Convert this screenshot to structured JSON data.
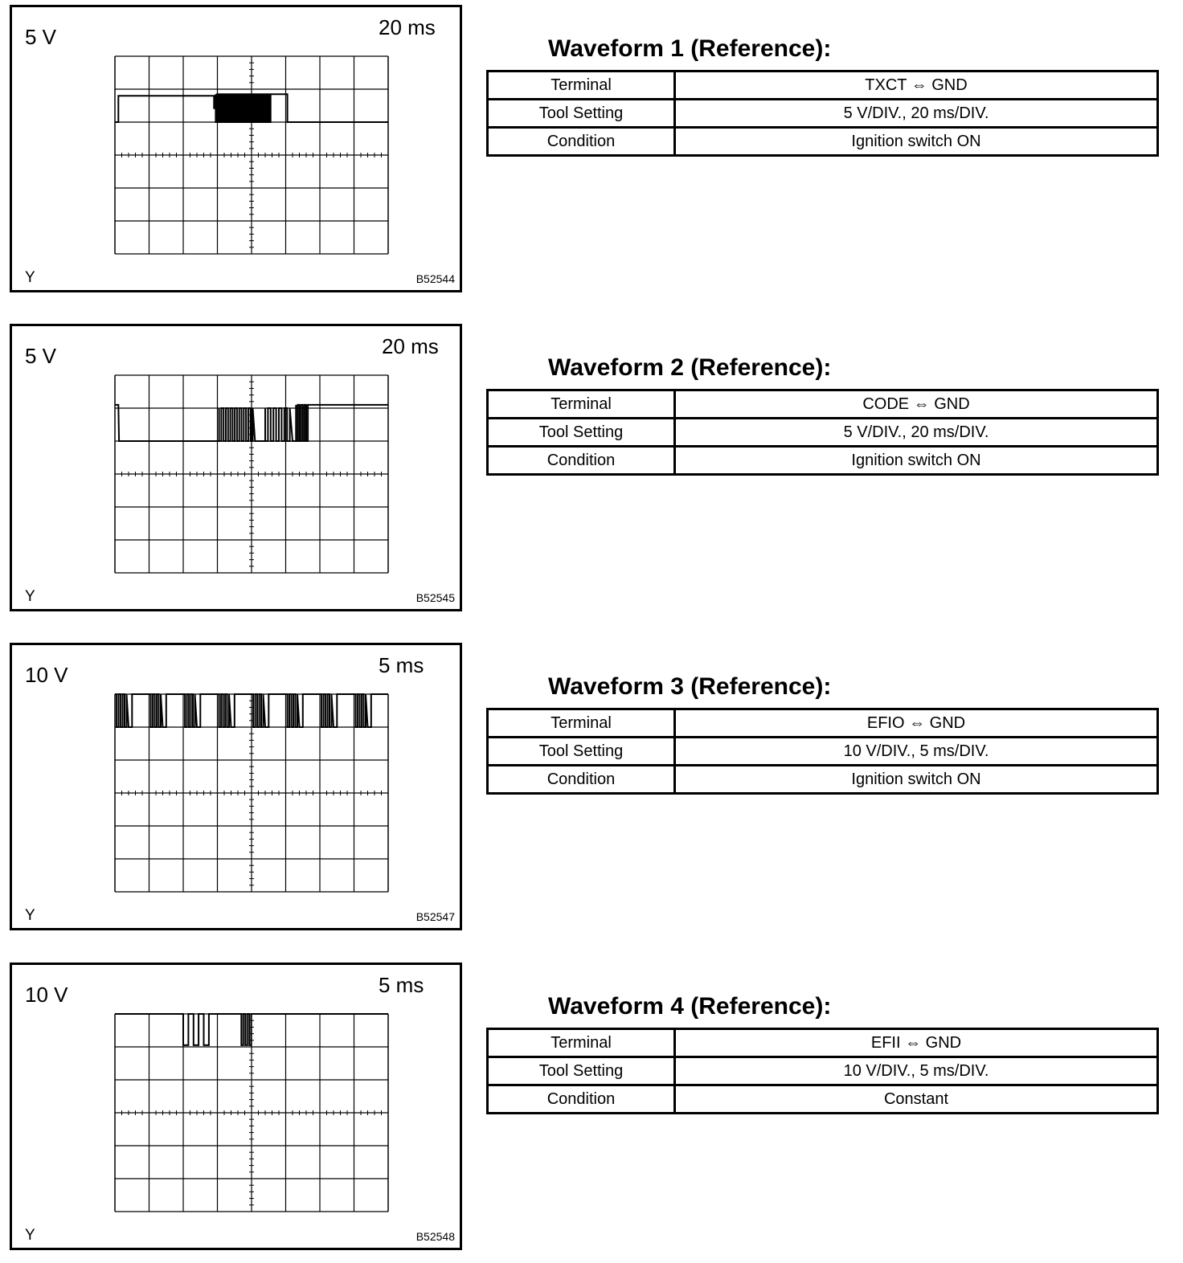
{
  "waveforms": [
    {
      "title": "Waveform 1 (Reference):",
      "volt_div": "5 V",
      "time_div": "20 ms",
      "y_label": "Y",
      "figure_code": "B52544",
      "rows": [
        {
          "key": "Terminal",
          "value": "TXCT ⇔ GND"
        },
        {
          "key": "Tool Setting",
          "value": "5 V/DIV., 20 ms/DIV."
        },
        {
          "key": "Condition",
          "value": "Ignition switch ON"
        }
      ]
    },
    {
      "title": "Waveform 2 (Reference):",
      "volt_div": "5 V",
      "time_div": "20 ms",
      "y_label": "Y",
      "figure_code": "B52545",
      "rows": [
        {
          "key": "Terminal",
          "value": "CODE ⇔ GND"
        },
        {
          "key": "Tool Setting",
          "value": "5 V/DIV., 20 ms/DIV."
        },
        {
          "key": "Condition",
          "value": "Ignition switch ON"
        }
      ]
    },
    {
      "title": "Waveform 3 (Reference):",
      "volt_div": "10 V",
      "time_div": "5 ms",
      "y_label": "Y",
      "figure_code": "B52547",
      "rows": [
        {
          "key": "Terminal",
          "value": "EFIO ⇔ GND"
        },
        {
          "key": "Tool Setting",
          "value": "10 V/DIV., 5 ms/DIV."
        },
        {
          "key": "Condition",
          "value": "Ignition switch ON"
        }
      ]
    },
    {
      "title": "Waveform 4 (Reference):",
      "volt_div": "10 V",
      "time_div": "5 ms",
      "y_label": "Y",
      "figure_code": "B52548",
      "rows": [
        {
          "key": "Terminal",
          "value": "EFII ⇔ GND"
        },
        {
          "key": "Tool Setting",
          "value": "10 V/DIV., 5 ms/DIV."
        },
        {
          "key": "Condition",
          "value": "Constant"
        }
      ]
    }
  ],
  "grid": {
    "horizontal_divisions": 8,
    "vertical_divisions": 6
  }
}
